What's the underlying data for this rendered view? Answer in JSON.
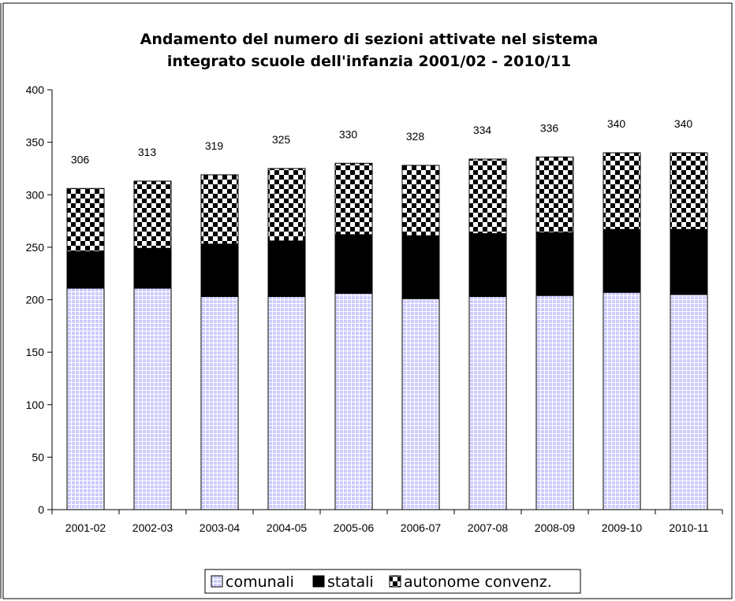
{
  "chart_data": {
    "type": "bar",
    "stacked": true,
    "title": [
      "Andamento del numero di sezioni attivate nel sistema",
      "integrato scuole dell'infanzia 2001/02 - 2010/11"
    ],
    "categories": [
      "2001-02",
      "2002-03",
      "2003-04",
      "2004-05",
      "2005-06",
      "2006-07",
      "2007-08",
      "2008-09",
      "2009-10",
      "2010-11"
    ],
    "series": [
      {
        "name": "comunali",
        "values": [
          211,
          211,
          203,
          203,
          206,
          201,
          203,
          204,
          207,
          205
        ],
        "color": "#ccccff",
        "pattern": "grid"
      },
      {
        "name": "statali",
        "values": [
          35,
          38,
          50,
          53,
          56,
          60,
          60,
          60,
          60,
          62
        ],
        "color": "#000000",
        "pattern": "solid"
      },
      {
        "name": "autonome convenz.",
        "values": [
          60,
          64,
          66,
          69,
          68,
          67,
          71,
          72,
          73,
          73
        ],
        "color": "#000000",
        "pattern": "checker"
      }
    ],
    "totals": [
      "306",
      "313",
      "319",
      "325",
      "330",
      "328",
      "334",
      "336",
      "340",
      "340"
    ],
    "ylim": [
      0,
      400
    ],
    "yticks": [
      "0",
      "50",
      "100",
      "150",
      "200",
      "250",
      "300",
      "350",
      "400"
    ],
    "grid": false,
    "legend_position": "bottom"
  }
}
